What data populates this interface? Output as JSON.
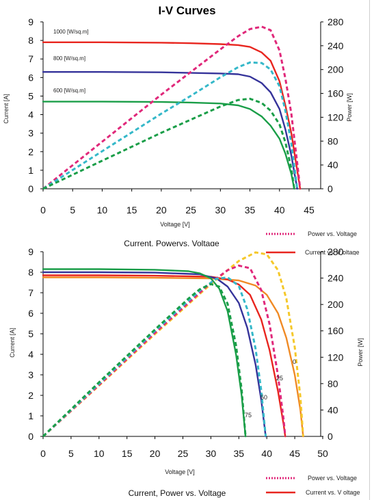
{
  "page": {
    "title": "I-V Curves"
  },
  "legend": {
    "power": {
      "label": "Power vs. Voltage",
      "color": "#e0287a"
    },
    "current": {
      "label": "Current vs. V oltage",
      "color": "#e8251e"
    }
  },
  "legend2": {
    "power": {
      "label": "Power vs. Voltage",
      "color": "#e0287a"
    },
    "current": {
      "label": "Current vs. V oltage",
      "color": "#e8251e"
    }
  },
  "chart_data": [
    {
      "type": "line",
      "title": "",
      "caption": "Current, Powervs. Voltage",
      "xlabel": "Voltage [V]",
      "ylabel": "Current [A]",
      "y2label": "Power [W]",
      "xlim": [
        0,
        45
      ],
      "ylim": [
        0,
        9
      ],
      "y2lim": [
        0,
        280
      ],
      "xticks": [
        0,
        5,
        10,
        15,
        20,
        25,
        30,
        35,
        40,
        45
      ],
      "yticks": [
        0,
        1,
        2,
        3,
        4,
        5,
        6,
        7,
        8,
        9
      ],
      "y2ticks": [
        0,
        40,
        80,
        120,
        160,
        200,
        240,
        280
      ],
      "grid": false,
      "series": [
        {
          "label": "1000 [W/sq.m]",
          "kind": "current",
          "color": "#e8251e",
          "x": [
            0,
            10,
            20,
            25,
            30,
            33,
            35,
            37,
            38.5,
            40,
            41,
            42,
            43,
            43.5
          ],
          "y": [
            7.9,
            7.9,
            7.88,
            7.85,
            7.8,
            7.75,
            7.65,
            7.35,
            6.9,
            5.8,
            4.5,
            3.0,
            1.0,
            0
          ]
        },
        {
          "label": "800 [W/sq.m]",
          "kind": "current",
          "color": "#35339a",
          "x": [
            0,
            10,
            20,
            25,
            30,
            33,
            35,
            37,
            38.5,
            40,
            41,
            42,
            43
          ],
          "y": [
            6.3,
            6.3,
            6.28,
            6.25,
            6.22,
            6.18,
            6.05,
            5.7,
            5.2,
            4.3,
            3.2,
            1.8,
            0
          ]
        },
        {
          "label": "600 [W/sq.m]",
          "kind": "current",
          "color": "#1a9e48",
          "x": [
            0,
            10,
            20,
            25,
            30,
            33,
            35,
            37,
            38.5,
            40,
            41,
            42,
            42.5
          ],
          "y": [
            4.7,
            4.7,
            4.68,
            4.65,
            4.6,
            4.5,
            4.3,
            3.9,
            3.4,
            2.7,
            1.9,
            0.8,
            0
          ]
        },
        {
          "label": "",
          "kind": "power",
          "color": "#e0287a",
          "x": [
            0,
            10,
            20,
            25,
            30,
            33,
            35,
            37,
            38.5,
            40,
            41,
            42,
            43,
            43.5
          ],
          "y": [
            0,
            79,
            158,
            196,
            234,
            256,
            268,
            272,
            266,
            232,
            185,
            126,
            43,
            0
          ]
        },
        {
          "label": "",
          "kind": "power",
          "color": "#35b8c9",
          "x": [
            0,
            10,
            20,
            25,
            30,
            33,
            35,
            37,
            38.5,
            40,
            41,
            42,
            43
          ],
          "y": [
            0,
            63,
            126,
            156,
            187,
            204,
            212,
            211,
            200,
            172,
            131,
            76,
            0
          ]
        },
        {
          "label": "",
          "kind": "power",
          "color": "#1a9e48",
          "x": [
            0,
            10,
            20,
            25,
            30,
            33,
            35,
            37,
            38.5,
            40,
            41,
            42,
            42.5
          ],
          "y": [
            0,
            47,
            94,
            116,
            138,
            149,
            151,
            144,
            131,
            108,
            78,
            34,
            0
          ]
        }
      ]
    },
    {
      "type": "line",
      "title": "",
      "caption": "Current, Power vs. Voltage",
      "xlabel": "Voltage [V]",
      "ylabel": "Current [A]",
      "y2label": "Power [W]",
      "xlim": [
        0,
        50
      ],
      "ylim": [
        0,
        9
      ],
      "y2lim": [
        0,
        280
      ],
      "xticks": [
        0,
        5,
        10,
        15,
        20,
        25,
        30,
        35,
        40,
        45,
        50
      ],
      "yticks": [
        0,
        1,
        2,
        3,
        4,
        5,
        6,
        7,
        8,
        9
      ],
      "y2ticks": [
        0,
        40,
        80,
        120,
        160,
        200,
        240,
        280
      ],
      "grid": false,
      "series": [
        {
          "label": "0",
          "kind": "current",
          "color": "#f08a24",
          "x": [
            0,
            10,
            20,
            30,
            35,
            38,
            40,
            42,
            43.5,
            45,
            46,
            46.5
          ],
          "y": [
            7.75,
            7.75,
            7.73,
            7.7,
            7.6,
            7.35,
            6.9,
            6.0,
            4.8,
            3.0,
            1.3,
            0
          ]
        },
        {
          "label": "25",
          "kind": "current",
          "color": "#e8251e",
          "x": [
            0,
            10,
            20,
            30,
            33,
            35,
            37,
            39,
            40.5,
            42,
            43,
            43.3
          ],
          "y": [
            7.85,
            7.85,
            7.83,
            7.78,
            7.65,
            7.4,
            6.9,
            5.7,
            4.2,
            2.2,
            0.6,
            0
          ]
        },
        {
          "label": "50",
          "kind": "current",
          "color": "#35339a",
          "x": [
            0,
            10,
            20,
            28,
            31,
            33,
            35,
            36.5,
            38,
            39,
            39.8
          ],
          "y": [
            8.0,
            8.0,
            7.98,
            7.9,
            7.7,
            7.3,
            6.5,
            5.3,
            3.5,
            1.8,
            0
          ]
        },
        {
          "label": "75",
          "kind": "current",
          "color": "#1a9e48",
          "x": [
            0,
            10,
            20,
            26,
            28,
            30,
            31.5,
            33,
            34.5,
            35.5,
            36.2
          ],
          "y": [
            8.15,
            8.15,
            8.12,
            8.05,
            7.95,
            7.7,
            7.2,
            6.1,
            4.0,
            2.0,
            0
          ]
        },
        {
          "label": "",
          "kind": "power",
          "color": "#f5c82a",
          "x": [
            0,
            10,
            20,
            30,
            35,
            38,
            40,
            42,
            43.5,
            45,
            46,
            46.5
          ],
          "y": [
            0,
            77,
            155,
            231,
            266,
            279,
            276,
            252,
            209,
            135,
            60,
            0
          ]
        },
        {
          "label": "",
          "kind": "power",
          "color": "#e0287a",
          "x": [
            0,
            10,
            20,
            30,
            33,
            35,
            37,
            39,
            40.5,
            42,
            43,
            43.3
          ],
          "y": [
            0,
            78,
            157,
            233,
            252,
            259,
            255,
            222,
            170,
            92,
            26,
            0
          ]
        },
        {
          "label": "",
          "kind": "power",
          "color": "#35b8c9",
          "x": [
            0,
            10,
            20,
            28,
            31,
            33,
            35,
            36.5,
            38,
            39,
            39.8
          ],
          "y": [
            0,
            80,
            160,
            221,
            239,
            241,
            228,
            193,
            133,
            70,
            0
          ]
        },
        {
          "label": "",
          "kind": "power",
          "color": "#1a9e48",
          "x": [
            0,
            10,
            20,
            26,
            28,
            30,
            31.5,
            33,
            34.5,
            35.5,
            36.2
          ],
          "y": [
            0,
            82,
            162,
            209,
            223,
            231,
            227,
            201,
            138,
            71,
            0
          ]
        }
      ]
    }
  ]
}
